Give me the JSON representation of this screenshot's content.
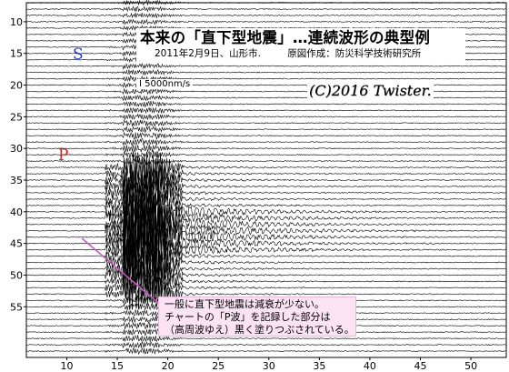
{
  "title": "本来の「直下型地震」…連続波形の典型例",
  "subtitle_date": "2011年2月9日、山形市.",
  "subtitle_source": "原図作成：防災科学技術研究所",
  "scale_label": "I 5000nm/s",
  "watermark": "(C)2016 Twister.",
  "phase_labels": {
    "s": "S",
    "p": "P"
  },
  "annotation_lines": [
    "一般に直下型地震は減衰が少ない。",
    "チャートの「P波」を記録した部分は",
    "（高周波ゆえ）黒く塗りつぶされている。"
  ],
  "colors": {
    "trace": "#000000",
    "s_label": "#1e3fc6",
    "p_label": "#d42020",
    "annotation_bg": "#fbe3f4",
    "pointer": "#c858c0"
  },
  "chart_data": {
    "type": "line",
    "title": "本来の「直下型地震」…連続波形の典型例",
    "xlabel": "",
    "ylabel": "",
    "x_ticks": [
      10,
      15,
      20,
      25,
      30,
      35,
      40,
      45,
      50
    ],
    "y_ticks": [
      10,
      15,
      20,
      25,
      30,
      35,
      40,
      45,
      50,
      55
    ],
    "xlim": [
      6,
      53.5
    ],
    "ylim": [
      7,
      63
    ],
    "grid": false,
    "p_arrival_x": 13.8,
    "s_arrival_x": 15.6,
    "event_row": 43
  }
}
